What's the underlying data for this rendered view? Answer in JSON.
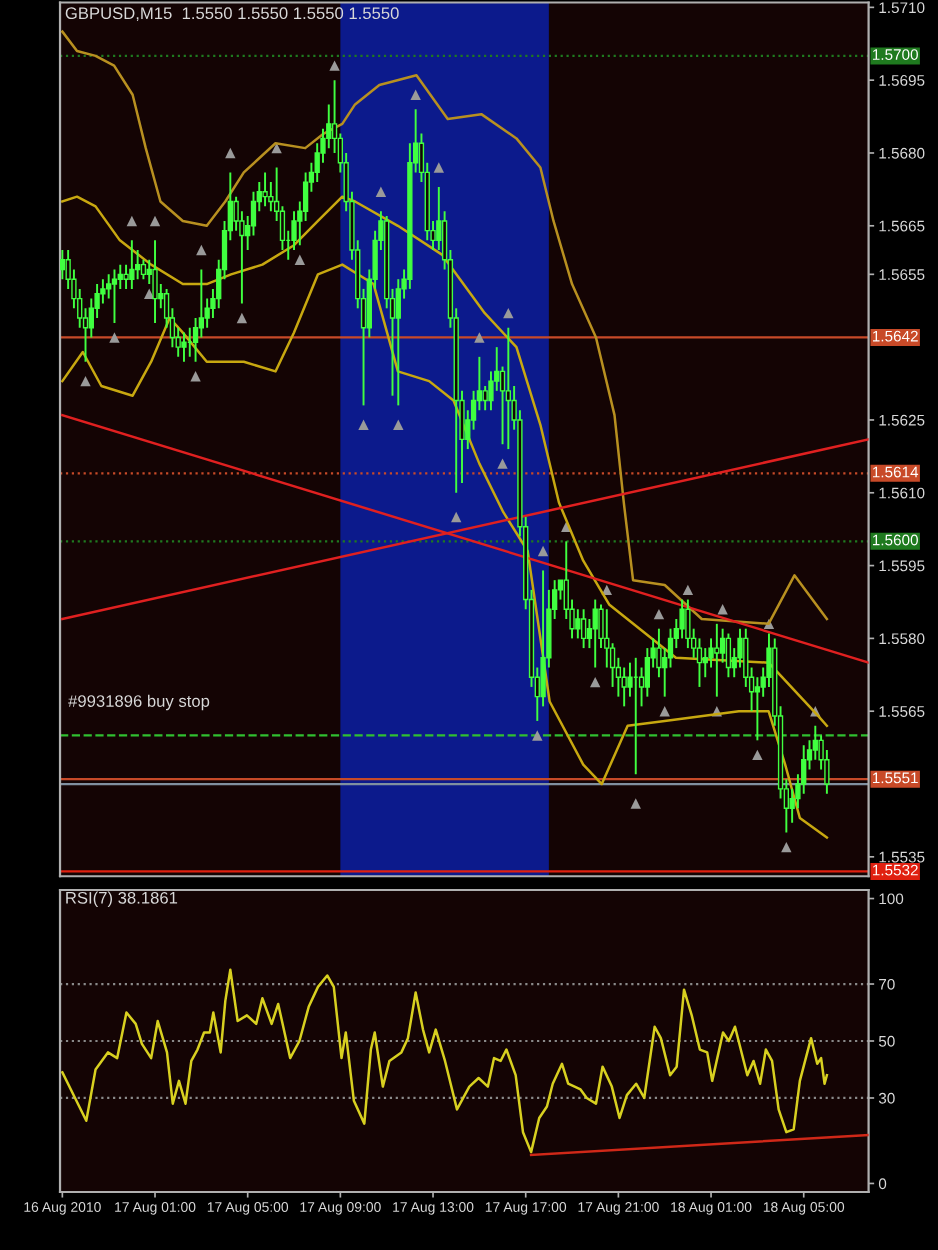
{
  "chart_data": [
    {
      "type": "candlestick",
      "title": "GBPUSD,M15  1.5550 1.5550 1.5550 1.5550",
      "color": "#40ff40",
      "tick_labels": "y",
      "xlim": [
        "2010-08-16T20:54",
        "2010-08-18T07:48"
      ],
      "ylim": [
        1.5531,
        1.5711
      ],
      "yticks": [
        1.5535,
        1.5565,
        {
          "value": 1.558,
          "label": "1.5580"
        },
        1.5595,
        {
          "value": 1.561,
          "label": "1.5610"
        },
        1.5625,
        1.5655,
        1.5665,
        {
          "value": 1.568,
          "label": "1.5680"
        },
        1.5695,
        {
          "value": 1.571,
          "label": "1.5710"
        }
      ],
      "x": [
        "2010-08-16T21:00",
        "2010-08-16T21:15",
        "2010-08-16T21:30",
        "2010-08-16T21:45",
        "2010-08-16T22:00",
        "2010-08-16T22:15",
        "2010-08-16T22:30",
        "2010-08-16T22:45",
        "2010-08-16T23:00",
        "2010-08-16T23:15",
        "2010-08-16T23:30",
        "2010-08-16T23:45",
        "2010-08-17T00:00",
        "2010-08-17T00:15",
        "2010-08-17T00:30",
        "2010-08-17T00:45",
        "2010-08-17T01:00",
        "2010-08-17T01:15",
        "2010-08-17T01:30",
        "2010-08-17T01:45",
        "2010-08-17T02:00",
        "2010-08-17T02:15",
        "2010-08-17T02:30",
        "2010-08-17T02:45",
        "2010-08-17T03:00",
        "2010-08-17T03:15",
        "2010-08-17T03:30",
        "2010-08-17T03:45",
        "2010-08-17T04:00",
        "2010-08-17T04:15",
        "2010-08-17T04:30",
        "2010-08-17T04:45",
        "2010-08-17T05:00",
        "2010-08-17T05:15",
        "2010-08-17T05:30",
        "2010-08-17T05:45",
        "2010-08-17T06:00",
        "2010-08-17T06:15",
        "2010-08-17T06:30",
        "2010-08-17T06:45",
        "2010-08-17T07:00",
        "2010-08-17T07:15",
        "2010-08-17T07:30",
        "2010-08-17T07:45",
        "2010-08-17T08:00",
        "2010-08-17T08:15",
        "2010-08-17T08:30",
        "2010-08-17T08:45",
        "2010-08-17T09:00",
        "2010-08-17T09:15",
        "2010-08-17T09:30",
        "2010-08-17T09:45",
        "2010-08-17T10:00",
        "2010-08-17T10:15",
        "2010-08-17T10:30",
        "2010-08-17T10:45",
        "2010-08-17T11:00",
        "2010-08-17T11:15",
        "2010-08-17T11:30",
        "2010-08-17T11:45",
        "2010-08-17T12:00",
        "2010-08-17T12:15",
        "2010-08-17T12:30",
        "2010-08-17T12:45",
        "2010-08-17T13:00",
        "2010-08-17T13:15",
        "2010-08-17T13:30",
        "2010-08-17T13:45",
        "2010-08-17T14:00",
        "2010-08-17T14:15",
        "2010-08-17T14:30",
        "2010-08-17T14:45",
        "2010-08-17T15:00",
        "2010-08-17T15:15",
        "2010-08-17T15:30",
        "2010-08-17T15:45",
        "2010-08-17T16:00",
        "2010-08-17T16:15",
        "2010-08-17T16:30",
        "2010-08-17T16:45",
        "2010-08-17T17:00",
        "2010-08-17T17:15",
        "2010-08-17T17:30",
        "2010-08-17T17:45",
        "2010-08-17T18:00",
        "2010-08-17T18:15",
        "2010-08-17T18:30",
        "2010-08-17T18:45",
        "2010-08-17T19:00",
        "2010-08-17T19:15",
        "2010-08-17T19:30",
        "2010-08-17T19:45",
        "2010-08-17T20:00",
        "2010-08-17T20:15",
        "2010-08-17T20:30",
        "2010-08-17T20:45",
        "2010-08-17T21:00",
        "2010-08-17T21:15",
        "2010-08-17T21:30",
        "2010-08-17T21:45",
        "2010-08-17T22:00",
        "2010-08-17T22:15",
        "2010-08-17T22:30",
        "2010-08-17T22:45",
        "2010-08-17T23:00",
        "2010-08-17T23:15",
        "2010-08-17T23:30",
        "2010-08-17T23:45",
        "2010-08-18T00:00",
        "2010-08-18T00:15",
        "2010-08-18T00:30",
        "2010-08-18T00:45",
        "2010-08-18T01:00",
        "2010-08-18T01:15",
        "2010-08-18T01:30",
        "2010-08-18T01:45",
        "2010-08-18T02:00",
        "2010-08-18T02:15",
        "2010-08-18T02:30",
        "2010-08-18T02:45",
        "2010-08-18T03:00",
        "2010-08-18T03:15",
        "2010-08-18T03:30",
        "2010-08-18T03:45",
        "2010-08-18T04:00",
        "2010-08-18T04:15",
        "2010-08-18T04:30",
        "2010-08-18T04:45",
        "2010-08-18T05:00",
        "2010-08-18T05:15",
        "2010-08-18T05:30",
        "2010-08-18T05:45",
        "2010-08-18T06:00"
      ],
      "ohlc": [
        [
          1.5656,
          1.566,
          1.5654,
          1.5658
        ],
        [
          1.5658,
          1.566,
          1.5652,
          1.5654
        ],
        [
          1.5654,
          1.5656,
          1.5648,
          1.565
        ],
        [
          1.565,
          1.5652,
          1.5644,
          1.5646
        ],
        [
          1.5646,
          1.5648,
          1.5637,
          1.5644
        ],
        [
          1.5644,
          1.565,
          1.5642,
          1.5648
        ],
        [
          1.5648,
          1.5653,
          1.5646,
          1.5651
        ],
        [
          1.5651,
          1.5654,
          1.5649,
          1.5652
        ],
        [
          1.5652,
          1.5655,
          1.565,
          1.5653
        ],
        [
          1.5653,
          1.5656,
          1.5645,
          1.5654
        ],
        [
          1.5654,
          1.5657,
          1.5652,
          1.5655
        ],
        [
          1.5655,
          1.5657,
          1.5652,
          1.5654
        ],
        [
          1.5654,
          1.5662,
          1.5652,
          1.5656
        ],
        [
          1.5656,
          1.566,
          1.5654,
          1.5657
        ],
        [
          1.5657,
          1.5658,
          1.5654,
          1.5655
        ],
        [
          1.5655,
          1.5658,
          1.5653,
          1.5656
        ],
        [
          1.5656,
          1.5662,
          1.5645,
          1.565
        ],
        [
          1.565,
          1.5653,
          1.5648,
          1.5651
        ],
        [
          1.5651,
          1.5652,
          1.5644,
          1.5646
        ],
        [
          1.5646,
          1.5648,
          1.564,
          1.5642
        ],
        [
          1.5642,
          1.5644,
          1.5638,
          1.564
        ],
        [
          1.564,
          1.5643,
          1.5637,
          1.5641
        ],
        [
          1.5641,
          1.5644,
          1.5638,
          1.5641
        ],
        [
          1.5641,
          1.5646,
          1.5637,
          1.5644
        ],
        [
          1.5644,
          1.5656,
          1.5642,
          1.5646
        ],
        [
          1.5646,
          1.565,
          1.5644,
          1.5648
        ],
        [
          1.5648,
          1.5652,
          1.5646,
          1.565
        ],
        [
          1.565,
          1.5658,
          1.5648,
          1.5656
        ],
        [
          1.5656,
          1.5666,
          1.5654,
          1.5664
        ],
        [
          1.5664,
          1.5676,
          1.5662,
          1.567
        ],
        [
          1.567,
          1.5671,
          1.5664,
          1.5666
        ],
        [
          1.5666,
          1.5668,
          1.5649,
          1.5663
        ],
        [
          1.5663,
          1.5667,
          1.566,
          1.5665
        ],
        [
          1.5665,
          1.5672,
          1.5663,
          1.567
        ],
        [
          1.567,
          1.5674,
          1.5668,
          1.5672
        ],
        [
          1.5672,
          1.5676,
          1.5669,
          1.5671
        ],
        [
          1.5671,
          1.5674,
          1.5668,
          1.567
        ],
        [
          1.567,
          1.5677,
          1.5666,
          1.5668
        ],
        [
          1.5668,
          1.5669,
          1.566,
          1.5662
        ],
        [
          1.5662,
          1.5664,
          1.5658,
          1.5662
        ],
        [
          1.5662,
          1.5668,
          1.566,
          1.5666
        ],
        [
          1.5666,
          1.567,
          1.5661,
          1.5668
        ],
        [
          1.5668,
          1.5676,
          1.5666,
          1.5674
        ],
        [
          1.5674,
          1.5678,
          1.5672,
          1.5676
        ],
        [
          1.5676,
          1.5682,
          1.5674,
          1.568
        ],
        [
          1.568,
          1.5685,
          1.5678,
          1.5683
        ],
        [
          1.5683,
          1.569,
          1.5681,
          1.5686
        ],
        [
          1.5686,
          1.5695,
          1.568,
          1.5683
        ],
        [
          1.5683,
          1.5684,
          1.5676,
          1.5678
        ],
        [
          1.5678,
          1.568,
          1.5668,
          1.567
        ],
        [
          1.567,
          1.5672,
          1.5658,
          1.566
        ],
        [
          1.566,
          1.5662,
          1.5648,
          1.565
        ],
        [
          1.565,
          1.5652,
          1.5628,
          1.5644
        ],
        [
          1.5644,
          1.5656,
          1.5642,
          1.5654
        ],
        [
          1.5654,
          1.5664,
          1.5652,
          1.5662
        ],
        [
          1.5662,
          1.5668,
          1.566,
          1.5666
        ],
        [
          1.5666,
          1.5667,
          1.5648,
          1.565
        ],
        [
          1.565,
          1.5652,
          1.563,
          1.5646
        ],
        [
          1.5646,
          1.5654,
          1.5628,
          1.5652
        ],
        [
          1.5652,
          1.5656,
          1.565,
          1.5654
        ],
        [
          1.5654,
          1.5682,
          1.5652,
          1.5678
        ],
        [
          1.5678,
          1.5689,
          1.5676,
          1.5682
        ],
        [
          1.5682,
          1.5684,
          1.5674,
          1.5676
        ],
        [
          1.5676,
          1.5678,
          1.5662,
          1.5664
        ],
        [
          1.5664,
          1.5666,
          1.566,
          1.5662
        ],
        [
          1.5662,
          1.5673,
          1.566,
          1.5666
        ],
        [
          1.5666,
          1.5668,
          1.5656,
          1.5658
        ],
        [
          1.5658,
          1.566,
          1.5644,
          1.5646
        ],
        [
          1.5646,
          1.5648,
          1.561,
          1.5629
        ],
        [
          1.5629,
          1.5631,
          1.5612,
          1.5621
        ],
        [
          1.5621,
          1.5627,
          1.5619,
          1.5625
        ],
        [
          1.5625,
          1.5631,
          1.5623,
          1.5629
        ],
        [
          1.5629,
          1.5638,
          1.5627,
          1.5631
        ],
        [
          1.5631,
          1.5632,
          1.5627,
          1.5629
        ],
        [
          1.5629,
          1.5635,
          1.5627,
          1.5633
        ],
        [
          1.5633,
          1.564,
          1.5631,
          1.5635
        ],
        [
          1.5635,
          1.5636,
          1.562,
          1.5631
        ],
        [
          1.5631,
          1.5644,
          1.5619,
          1.5629
        ],
        [
          1.5629,
          1.5632,
          1.5623,
          1.5625
        ],
        [
          1.5625,
          1.5627,
          1.5601,
          1.5603
        ],
        [
          1.5603,
          1.5605,
          1.5586,
          1.5588
        ],
        [
          1.5588,
          1.559,
          1.557,
          1.5572
        ],
        [
          1.5572,
          1.5574,
          1.5563,
          1.5568
        ],
        [
          1.5568,
          1.5594,
          1.5566,
          1.5576
        ],
        [
          1.5576,
          1.559,
          1.5574,
          1.5586
        ],
        [
          1.5586,
          1.5592,
          1.5584,
          1.559
        ],
        [
          1.559,
          1.5592,
          1.5588,
          1.5592
        ],
        [
          1.5592,
          1.56,
          1.5584,
          1.5586
        ],
        [
          1.5586,
          1.5588,
          1.558,
          1.5582
        ],
        [
          1.5582,
          1.5586,
          1.558,
          1.5584
        ],
        [
          1.5584,
          1.5586,
          1.5578,
          1.558
        ],
        [
          1.558,
          1.5584,
          1.5578,
          1.5582
        ],
        [
          1.5582,
          1.5588,
          1.5574,
          1.5586
        ],
        [
          1.5586,
          1.5587,
          1.5578,
          1.558
        ],
        [
          1.558,
          1.5586,
          1.5574,
          1.5578
        ],
        [
          1.5578,
          1.5579,
          1.557,
          1.5574
        ],
        [
          1.5574,
          1.5576,
          1.5568,
          1.5572
        ],
        [
          1.5572,
          1.5574,
          1.5566,
          1.557
        ],
        [
          1.557,
          1.5575,
          1.5568,
          1.5572
        ],
        [
          1.5572,
          1.5576,
          1.5552,
          1.5572
        ],
        [
          1.5572,
          1.5574,
          1.5566,
          1.557
        ],
        [
          1.557,
          1.5578,
          1.5568,
          1.5576
        ],
        [
          1.5576,
          1.558,
          1.5574,
          1.5578
        ],
        [
          1.5578,
          1.5582,
          1.5572,
          1.5574
        ],
        [
          1.5574,
          1.5578,
          1.5568,
          1.5576
        ],
        [
          1.5576,
          1.5582,
          1.5574,
          1.558
        ],
        [
          1.558,
          1.5584,
          1.5578,
          1.5582
        ],
        [
          1.5582,
          1.5588,
          1.558,
          1.5586
        ],
        [
          1.5586,
          1.5588,
          1.5578,
          1.558
        ],
        [
          1.558,
          1.5582,
          1.5576,
          1.5578
        ],
        [
          1.5578,
          1.558,
          1.557,
          1.5575
        ],
        [
          1.5575,
          1.5578,
          1.5572,
          1.5576
        ],
        [
          1.5576,
          1.558,
          1.5574,
          1.5578
        ],
        [
          1.5578,
          1.5583,
          1.5568,
          1.5577
        ],
        [
          1.5577,
          1.5582,
          1.5575,
          1.558
        ],
        [
          1.558,
          1.5581,
          1.5572,
          1.5574
        ],
        [
          1.5574,
          1.5578,
          1.5572,
          1.5576
        ],
        [
          1.5576,
          1.5582,
          1.5574,
          1.558
        ],
        [
          1.558,
          1.5582,
          1.557,
          1.5572
        ],
        [
          1.5572,
          1.5574,
          1.5565,
          1.5569
        ],
        [
          1.5569,
          1.5572,
          1.5559,
          1.557
        ],
        [
          1.557,
          1.5574,
          1.5568,
          1.5572
        ],
        [
          1.5572,
          1.5581,
          1.557,
          1.5578
        ],
        [
          1.5578,
          1.558,
          1.5562,
          1.5564
        ],
        [
          1.5564,
          1.5566,
          1.5547,
          1.5549
        ],
        [
          1.5549,
          1.5551,
          1.554,
          1.5545
        ],
        [
          1.5545,
          1.5549,
          1.5542,
          1.5547
        ],
        [
          1.5547,
          1.5552,
          1.5545,
          1.555
        ],
        [
          1.555,
          1.5558,
          1.5548,
          1.5555
        ],
        [
          1.5555,
          1.5559,
          1.5553,
          1.5557
        ],
        [
          1.5557,
          1.5562,
          1.5555,
          1.5559
        ],
        [
          1.5559,
          1.556,
          1.5553,
          1.5555
        ],
        [
          1.5555,
          1.5557,
          1.5548,
          1.555
        ]
      ],
      "series": [
        {
          "type": "line",
          "color": "#b89020",
          "x": [
            "2010-08-16T21:00",
            "2010-08-16T21:38",
            "2010-08-16T22:26",
            "2010-08-16T23:14",
            "2010-08-17T00:02",
            "2010-08-17T00:36",
            "2010-08-17T01:14",
            "2010-08-17T02:12",
            "2010-08-17T03:14",
            "2010-08-17T04:02",
            "2010-08-17T04:50",
            "2010-08-17T06:12",
            "2010-08-17T07:29",
            "2010-08-17T08:17",
            "2010-08-17T09:05",
            "2010-08-17T09:38",
            "2010-08-17T10:41",
            "2010-08-17T12:17",
            "2010-08-17T13:38",
            "2010-08-17T15:05",
            "2010-08-17T16:36",
            "2010-08-17T17:38",
            "2010-08-17T18:12",
            "2010-08-17T19:00",
            "2010-08-17T20:02",
            "2010-08-17T20:50",
            "2010-08-17T21:14",
            "2010-08-17T21:38",
            "2010-08-17T23:00",
            "2010-08-18T00:36",
            "2010-08-18T03:29",
            "2010-08-18T04:36",
            "2010-08-18T06:00"
          ],
          "values": [
            1.5705,
            1.5701,
            1.57,
            1.5698,
            1.5692,
            1.5681,
            1.567,
            1.5666,
            1.5665,
            1.567,
            1.5676,
            1.5682,
            1.5681,
            1.5684,
            1.5686,
            1.569,
            1.5694,
            1.5696,
            1.5687,
            1.5688,
            1.5683,
            1.5677,
            1.5666,
            1.5653,
            1.5642,
            1.5626,
            1.5608,
            1.5592,
            1.5591,
            1.5584,
            1.5583,
            1.5593,
            1.5584
          ]
        },
        {
          "type": "line",
          "color": "#c8a810",
          "x": [
            "2010-08-16T21:00",
            "2010-08-16T21:38",
            "2010-08-16T22:26",
            "2010-08-16T23:29",
            "2010-08-17T00:50",
            "2010-08-17T02:12",
            "2010-08-17T03:14",
            "2010-08-17T04:17",
            "2010-08-17T05:38",
            "2010-08-17T07:00",
            "2010-08-17T08:02",
            "2010-08-17T09:05",
            "2010-08-17T09:38",
            "2010-08-17T11:29",
            "2010-08-17T13:24",
            "2010-08-17T15:14",
            "2010-08-17T16:36",
            "2010-08-17T17:38",
            "2010-08-17T18:26",
            "2010-08-17T19:29",
            "2010-08-17T20:36",
            "2010-08-17T23:29",
            "2010-08-18T03:29",
            "2010-08-18T05:38",
            "2010-08-18T06:00"
          ],
          "values": [
            1.567,
            1.5671,
            1.5669,
            1.5662,
            1.5657,
            1.5653,
            1.5653,
            1.5655,
            1.5657,
            1.5661,
            1.5666,
            1.5671,
            1.567,
            1.5665,
            1.5659,
            1.5647,
            1.564,
            1.5624,
            1.5608,
            1.5596,
            1.5587,
            1.5576,
            1.5575,
            1.5564,
            1.5562
          ]
        },
        {
          "type": "line",
          "color": "#c8a810",
          "x": [
            "2010-08-16T21:00",
            "2010-08-16T21:53",
            "2010-08-16T22:41",
            "2010-08-17T00:02",
            "2010-08-17T00:50",
            "2010-08-17T01:38",
            "2010-08-17T02:12",
            "2010-08-17T03:14",
            "2010-08-17T04:50",
            "2010-08-17T06:12",
            "2010-08-17T07:00",
            "2010-08-17T08:02",
            "2010-08-17T09:05",
            "2010-08-17T10:26",
            "2010-08-17T11:29",
            "2010-08-17T12:50",
            "2010-08-17T13:53",
            "2010-08-17T15:00",
            "2010-08-17T16:02",
            "2010-08-17T17:05",
            "2010-08-17T18:02",
            "2010-08-17T19:29",
            "2010-08-17T20:17",
            "2010-08-17T21:24",
            "2010-08-17T23:00",
            "2010-08-18T02:12",
            "2010-08-18T03:29",
            "2010-08-18T04:12",
            "2010-08-18T04:50",
            "2010-08-18T06:00"
          ],
          "values": [
            1.5633,
            1.5639,
            1.5632,
            1.563,
            1.5637,
            1.5646,
            1.5643,
            1.5637,
            1.5637,
            1.5635,
            1.5643,
            1.5655,
            1.5657,
            1.5653,
            1.5635,
            1.5633,
            1.5629,
            1.5616,
            1.5606,
            1.5598,
            1.5567,
            1.5554,
            1.555,
            1.5562,
            1.5563,
            1.5565,
            1.5565,
            1.5554,
            1.5543,
            1.5539
          ]
        },
        {
          "type": "line",
          "color": "#e02020",
          "x": [
            "2010-08-16T21:00",
            "2010-08-18T07:48"
          ],
          "values": [
            1.5626,
            1.5575
          ]
        },
        {
          "type": "line",
          "color": "#e02020",
          "x": [
            "2010-08-16T21:00",
            "2010-08-18T07:48"
          ],
          "values": [
            1.5584,
            1.5621
          ]
        },
        {
          "type": "scatter",
          "color": "#9a9a9a",
          "marker": "triangle",
          "x": [
            "2010-08-17T00:00",
            "2010-08-17T01:00",
            "2010-08-17T03:00",
            "2010-08-17T04:15",
            "2010-08-17T06:15",
            "2010-08-17T08:45",
            "2010-08-17T10:45",
            "2010-08-17T12:15",
            "2010-08-17T13:15",
            "2010-08-17T15:00",
            "2010-08-17T16:15",
            "2010-08-17T17:45",
            "2010-08-17T18:45",
            "2010-08-17T20:30",
            "2010-08-17T22:45",
            "2010-08-18T00:00",
            "2010-08-18T01:30",
            "2010-08-18T03:30",
            "2010-08-18T05:30"
          ],
          "values": [
            1.5666,
            1.5666,
            1.566,
            1.568,
            1.5681,
            1.5698,
            1.5672,
            1.5692,
            1.5677,
            1.5642,
            1.5647,
            1.5598,
            1.5603,
            1.559,
            1.5585,
            1.559,
            1.5586,
            1.5583,
            1.5565
          ]
        },
        {
          "type": "scatter",
          "color": "#9a9a9a",
          "marker": "triangle",
          "x": [
            "2010-08-16T22:00",
            "2010-08-16T23:15",
            "2010-08-17T00:45",
            "2010-08-17T02:45",
            "2010-08-17T04:45",
            "2010-08-17T07:15",
            "2010-08-17T10:00",
            "2010-08-17T11:30",
            "2010-08-17T14:00",
            "2010-08-17T16:00",
            "2010-08-17T17:30",
            "2010-08-17T20:00",
            "2010-08-17T21:45",
            "2010-08-17T23:00",
            "2010-08-18T01:15",
            "2010-08-18T03:00",
            "2010-08-18T04:15"
          ],
          "values": [
            1.5633,
            1.5642,
            1.5651,
            1.5634,
            1.5646,
            1.5658,
            1.5624,
            1.5624,
            1.5605,
            1.5616,
            1.556,
            1.5571,
            1.5546,
            1.5565,
            1.5565,
            1.5556,
            1.5537
          ]
        }
      ],
      "bands": [
        {
          "axis": "x",
          "from": "2010-08-17T09:00",
          "to": "2010-08-17T18:00",
          "color": "#0c1a8c"
        }
      ],
      "ref_lines": [
        {
          "axis": "y",
          "value": 1.57,
          "label": "1.5700",
          "color": "#1f7a1f",
          "line_style": "dotted"
        },
        {
          "axis": "y",
          "value": 1.5642,
          "label": "1.5642",
          "color": "#c84a28",
          "line_style": "solid"
        },
        {
          "axis": "y",
          "value": 1.5614,
          "label": "1.5614",
          "color": "#c84a28",
          "line_style": "dotted"
        },
        {
          "axis": "y",
          "value": 1.56,
          "label": "1.5600",
          "color": "#1f7a1f",
          "line_style": "dotted"
        },
        {
          "axis": "y",
          "value": 1.556,
          "color": "#30c030",
          "line_style": "dashed"
        },
        {
          "axis": "y",
          "value": 1.5551,
          "label": "1.5551",
          "color": "#c84a28",
          "line_style": "solid"
        },
        {
          "axis": "y",
          "value": 1.555,
          "color": "#8090a0",
          "line_style": "solid"
        },
        {
          "axis": "y",
          "value": 1.5532,
          "label": "1.5532",
          "color": "#e02010",
          "line_style": "solid"
        }
      ],
      "annotations": [
        "#9931896 buy stop"
      ]
    },
    {
      "type": "line",
      "title": "RSI(7) 38.1861",
      "xlim": [
        "2010-08-16T20:54",
        "2010-08-18T07:48"
      ],
      "ylim": [
        -3,
        103
      ],
      "yticks": [
        0,
        30,
        50,
        70,
        100
      ],
      "xticks": [
        {
          "value": "2010-08-16T21:00",
          "label": "16 Aug 2010"
        },
        {
          "value": "2010-08-17T01:00",
          "label": "17 Aug 01:00"
        },
        {
          "value": "2010-08-17T05:00",
          "label": "17 Aug 05:00"
        },
        {
          "value": "2010-08-17T09:00",
          "label": "17 Aug 09:00"
        },
        {
          "value": "2010-08-17T13:00",
          "label": "17 Aug 13:00"
        },
        {
          "value": "2010-08-17T17:00",
          "label": "17 Aug 17:00"
        },
        {
          "value": "2010-08-17T21:00",
          "label": "17 Aug 21:00"
        },
        {
          "value": "2010-08-18T01:00",
          "label": "18 Aug 01:00"
        },
        {
          "value": "2010-08-18T05:00",
          "label": "18 Aug 05:00"
        }
      ],
      "series": [
        {
          "type": "line",
          "color": "#d8d020",
          "x": [
            "2010-08-16T21:00",
            "2010-08-16T22:02",
            "2010-08-16T22:26",
            "2010-08-16T22:58",
            "2010-08-16T23:22",
            "2010-08-16T23:46",
            "2010-08-17T00:10",
            "2010-08-17T00:26",
            "2010-08-17T00:50",
            "2010-08-17T01:07",
            "2010-08-17T01:31",
            "2010-08-17T01:46",
            "2010-08-17T02:02",
            "2010-08-17T02:19",
            "2010-08-17T02:34",
            "2010-08-17T02:50",
            "2010-08-17T03:07",
            "2010-08-17T03:22",
            "2010-08-17T03:31",
            "2010-08-17T03:50",
            "2010-08-17T04:02",
            "2010-08-17T04:15",
            "2010-08-17T04:34",
            "2010-08-17T04:58",
            "2010-08-17T05:22",
            "2010-08-17T05:38",
            "2010-08-17T06:02",
            "2010-08-17T06:19",
            "2010-08-17T06:50",
            "2010-08-17T07:14",
            "2010-08-17T07:38",
            "2010-08-17T08:02",
            "2010-08-17T08:26",
            "2010-08-17T08:43",
            "2010-08-17T09:03",
            "2010-08-17T09:14",
            "2010-08-17T09:35",
            "2010-08-17T10:02",
            "2010-08-17T10:19",
            "2010-08-17T10:29",
            "2010-08-17T10:50",
            "2010-08-17T11:07",
            "2010-08-17T11:38",
            "2010-08-17T11:55",
            "2010-08-17T12:15",
            "2010-08-17T12:34",
            "2010-08-17T12:50",
            "2010-08-17T13:07",
            "2010-08-17T13:31",
            "2010-08-17T14:02",
            "2010-08-17T14:34",
            "2010-08-17T14:58",
            "2010-08-17T15:22",
            "2010-08-17T15:38",
            "2010-08-17T15:55",
            "2010-08-17T16:10",
            "2010-08-17T16:34",
            "2010-08-17T16:53",
            "2010-08-17T17:14",
            "2010-08-17T17:35",
            "2010-08-17T17:55",
            "2010-08-17T18:10",
            "2010-08-17T18:34",
            "2010-08-17T18:50",
            "2010-08-17T19:22",
            "2010-08-17T19:38",
            "2010-08-17T20:02",
            "2010-08-17T20:19",
            "2010-08-17T20:43",
            "2010-08-17T21:03",
            "2010-08-17T21:22",
            "2010-08-17T21:46",
            "2010-08-17T22:07",
            "2010-08-17T22:34",
            "2010-08-17T22:50",
            "2010-08-17T23:14",
            "2010-08-17T23:31",
            "2010-08-17T23:50",
            "2010-08-18T00:10",
            "2010-08-18T00:31",
            "2010-08-18T00:50",
            "2010-08-18T01:03",
            "2010-08-18T01:31",
            "2010-08-18T01:46",
            "2010-08-18T02:02",
            "2010-08-18T02:34",
            "2010-08-18T02:50",
            "2010-08-18T03:07",
            "2010-08-18T03:22",
            "2010-08-18T03:38",
            "2010-08-18T03:55",
            "2010-08-18T04:15",
            "2010-08-18T04:34",
            "2010-08-18T04:50",
            "2010-08-18T05:19",
            "2010-08-18T05:35",
            "2010-08-18T05:45",
            "2010-08-18T05:54",
            "2010-08-18T06:00"
          ],
          "values": [
            39,
            22,
            40,
            46,
            44,
            60,
            56,
            49,
            44,
            57,
            46,
            28,
            36,
            28,
            43,
            47,
            53,
            53,
            60,
            46,
            64,
            75,
            57,
            59,
            56,
            65,
            56,
            63,
            44,
            50,
            62,
            69,
            73,
            69,
            44,
            53,
            29,
            21,
            47,
            53,
            34,
            43,
            46,
            51,
            67,
            54,
            46,
            54,
            43,
            26,
            34,
            37,
            34,
            44,
            43,
            47,
            38,
            18,
            11,
            23,
            27,
            35,
            42,
            35,
            33,
            30,
            28,
            41,
            34,
            23,
            31,
            35,
            30,
            55,
            51,
            38,
            41,
            68,
            59,
            47,
            46,
            36,
            53,
            50,
            55,
            38,
            43,
            35,
            47,
            43,
            26,
            18,
            19,
            36,
            51,
            42,
            44,
            35,
            38
          ]
        },
        {
          "type": "line",
          "color": "#d02818",
          "x": [
            "2010-08-17T17:14",
            "2010-08-18T07:48"
          ],
          "values": [
            10,
            17
          ]
        }
      ],
      "ref_lines": [
        {
          "axis": "y",
          "value": 30,
          "color": "#8a8a8a",
          "line_style": "dotted"
        },
        {
          "axis": "y",
          "value": 50,
          "color": "#8a8a8a",
          "line_style": "dotted"
        },
        {
          "axis": "y",
          "value": 70,
          "color": "#8a8a8a",
          "line_style": "dotted"
        }
      ]
    }
  ]
}
